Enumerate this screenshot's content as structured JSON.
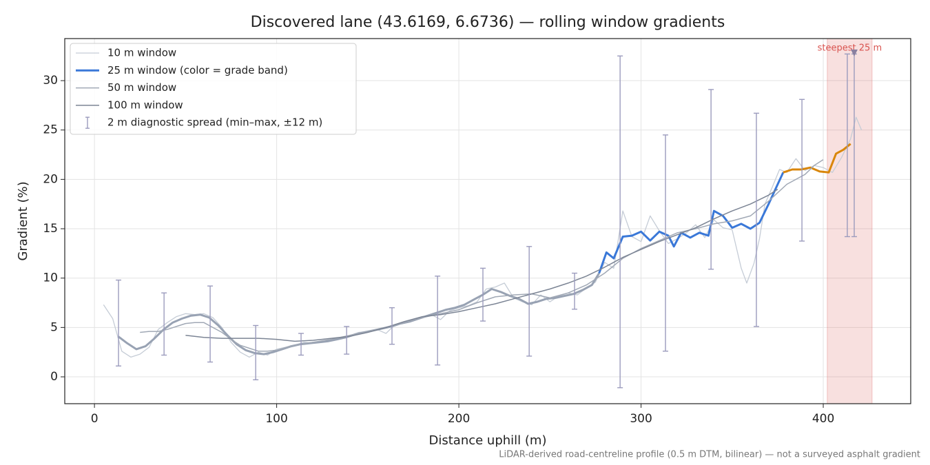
{
  "chart_data": {
    "type": "line",
    "title": "Discovered lane (43.6169, 6.6736) — rolling window gradients",
    "x_label": "Distance uphill (m)",
    "y_label": "Gradient (%)",
    "footnote": "LiDAR-derived road-centreline profile (0.5 m DTM, bilinear) — not a surveyed asphalt gradient",
    "xlim": [
      -16.3,
      448
    ],
    "ylim": [
      -2.72,
      34.26
    ],
    "xticks": [
      0,
      100,
      200,
      300,
      400
    ],
    "yticks": [
      0,
      5,
      10,
      15,
      20,
      25,
      30
    ],
    "grid": true,
    "legend": "upper left",
    "series": [
      {
        "name": "10 m window",
        "color": "#c5ccd6",
        "width": 1.3,
        "x": [
          5,
          10,
          15,
          20,
          25,
          30,
          35,
          40,
          45,
          50,
          55,
          60,
          65,
          70,
          75,
          80,
          85,
          90,
          95,
          100,
          105,
          110,
          115,
          120,
          125,
          130,
          135,
          140,
          145,
          150,
          155,
          160,
          165,
          170,
          175,
          180,
          185,
          190,
          195,
          200,
          205,
          210,
          215,
          220,
          225,
          230,
          235,
          240,
          245,
          250,
          255,
          260,
          265,
          270,
          275,
          280,
          285,
          290,
          295,
          300,
          305,
          310,
          315,
          320,
          325,
          330,
          335,
          340,
          345,
          350,
          355,
          358,
          362,
          365,
          368,
          372,
          376,
          380,
          385,
          390,
          395,
          400,
          405,
          410,
          415,
          418,
          421
        ],
        "values": [
          7.3,
          5.9,
          2.6,
          2.0,
          2.3,
          3.0,
          4.8,
          5.5,
          6.1,
          6.4,
          6.3,
          6.4,
          6.0,
          5.0,
          3.5,
          2.5,
          2.0,
          2.5,
          2.2,
          2.8,
          3.0,
          3.2,
          3.5,
          3.4,
          3.6,
          3.8,
          3.9,
          4.1,
          4.5,
          4.6,
          4.8,
          4.4,
          5.3,
          5.5,
          5.7,
          6.0,
          6.3,
          5.8,
          6.7,
          7.0,
          7.2,
          7.6,
          8.9,
          9.1,
          9.5,
          8.0,
          7.6,
          7.3,
          8.3,
          7.6,
          8.2,
          8.5,
          8.3,
          9.0,
          9.6,
          11.6,
          11.0,
          16.8,
          14.2,
          13.7,
          16.3,
          14.8,
          13.5,
          14.0,
          14.6,
          15.4,
          14.1,
          15.9,
          15.1,
          14.9,
          11.0,
          9.5,
          11.5,
          14.0,
          17.5,
          19.2,
          21.0,
          20.7,
          22.1,
          20.9,
          21.4,
          21.2,
          20.7,
          22.2,
          24.1,
          26.3,
          25.0
        ]
      },
      {
        "name": "25 m window (color = grade band)",
        "color": "#3a78d8",
        "width": 3,
        "grade_bands": [
          {
            "below": 10,
            "color": "#98a2b3"
          },
          {
            "below": 20,
            "color": "#3a78d8"
          },
          {
            "color": "#d9860a"
          }
        ],
        "x": [
          13,
          18,
          23,
          28,
          33,
          38,
          43,
          48,
          53,
          58,
          63,
          68,
          73,
          78,
          83,
          88,
          93,
          98,
          103,
          108,
          113,
          118,
          123,
          128,
          133,
          138,
          143,
          148,
          153,
          158,
          163,
          168,
          173,
          178,
          183,
          188,
          193,
          198,
          203,
          208,
          213,
          218,
          223,
          228,
          233,
          238,
          243,
          248,
          253,
          258,
          263,
          268,
          273,
          277,
          281,
          285,
          290,
          295,
          300,
          305,
          310,
          315,
          318,
          322,
          327,
          332,
          337,
          340,
          345,
          350,
          355,
          360,
          365,
          370,
          375,
          378,
          383,
          388,
          393,
          398,
          403,
          407,
          411,
          415
        ],
        "values": [
          4.1,
          3.4,
          2.8,
          3.1,
          3.9,
          4.8,
          5.5,
          5.9,
          6.2,
          6.3,
          6.0,
          5.2,
          4.2,
          3.3,
          2.7,
          2.4,
          2.3,
          2.5,
          2.8,
          3.1,
          3.3,
          3.4,
          3.5,
          3.6,
          3.8,
          4.0,
          4.3,
          4.5,
          4.7,
          4.9,
          5.1,
          5.4,
          5.6,
          5.9,
          6.2,
          6.5,
          6.8,
          7.0,
          7.3,
          7.8,
          8.3,
          8.9,
          8.6,
          8.2,
          7.9,
          7.4,
          7.6,
          7.9,
          8.0,
          8.2,
          8.4,
          8.8,
          9.3,
          10.5,
          12.6,
          12.0,
          14.2,
          14.3,
          14.7,
          13.8,
          14.7,
          14.3,
          13.2,
          14.6,
          14.1,
          14.6,
          14.3,
          16.8,
          16.3,
          15.1,
          15.5,
          15.0,
          15.6,
          17.5,
          19.5,
          20.7,
          21.0,
          21.0,
          21.2,
          20.8,
          20.7,
          22.6,
          23.0,
          23.6
        ]
      },
      {
        "name": "50 m window",
        "color": "#a0a8b5",
        "width": 1.5,
        "x": [
          25,
          30,
          35,
          40,
          45,
          50,
          55,
          60,
          65,
          70,
          75,
          80,
          85,
          90,
          95,
          100,
          110,
          120,
          130,
          140,
          150,
          160,
          170,
          180,
          190,
          200,
          210,
          220,
          230,
          240,
          250,
          260,
          270,
          280,
          290,
          300,
          310,
          320,
          330,
          340,
          350,
          360,
          370,
          380,
          390,
          395,
          400
        ],
        "values": [
          4.5,
          4.6,
          4.6,
          4.8,
          5.1,
          5.4,
          5.5,
          5.5,
          5.0,
          4.5,
          3.8,
          3.2,
          2.9,
          2.6,
          2.6,
          2.7,
          3.2,
          3.5,
          3.8,
          4.2,
          4.6,
          5.0,
          5.5,
          6.0,
          6.4,
          6.8,
          7.5,
          8.1,
          8.3,
          8.4,
          8.0,
          8.5,
          9.3,
          10.5,
          12.0,
          13.0,
          13.8,
          14.6,
          15.0,
          15.5,
          15.8,
          16.3,
          17.8,
          19.5,
          20.5,
          21.4,
          22.0
        ]
      },
      {
        "name": "100 m window",
        "color": "#7b8494",
        "width": 1.5,
        "x": [
          50,
          60,
          70,
          80,
          90,
          100,
          110,
          120,
          130,
          140,
          150,
          160,
          170,
          180,
          190,
          200,
          210,
          220,
          230,
          240,
          250,
          260,
          270,
          280,
          290,
          300,
          310,
          320,
          330,
          340,
          350,
          360,
          370,
          375
        ],
        "values": [
          4.2,
          4.0,
          3.9,
          3.9,
          3.9,
          3.8,
          3.6,
          3.7,
          3.9,
          4.1,
          4.5,
          5.0,
          5.6,
          6.1,
          6.3,
          6.6,
          7.0,
          7.4,
          7.9,
          8.4,
          8.9,
          9.5,
          10.2,
          11.1,
          12.1,
          12.9,
          13.7,
          14.4,
          15.1,
          16.0,
          16.8,
          17.5,
          18.4,
          19.0
        ]
      }
    ],
    "errorbars": {
      "name": "2 m diagnostic spread (min–max, ±12 m)",
      "color": "#9b9bbd",
      "x": [
        13.2,
        38.2,
        63.5,
        88.5,
        113.4,
        138.4,
        163.3,
        188.3,
        213.2,
        238.6,
        263.5,
        288.5,
        313.4,
        338.4,
        363.3,
        388.3,
        413.2,
        417
      ],
      "low": [
        1.1,
        2.2,
        1.5,
        -0.3,
        2.2,
        2.3,
        3.3,
        1.2,
        5.65,
        2.1,
        6.85,
        -1.1,
        2.6,
        10.9,
        5.1,
        13.75,
        14.2,
        14.2
      ],
      "high": [
        9.8,
        8.5,
        9.2,
        5.2,
        4.4,
        5.1,
        7.0,
        10.2,
        11.0,
        13.2,
        10.5,
        32.5,
        24.5,
        29.1,
        26.7,
        28.1,
        32.7,
        32.7
      ]
    },
    "steepest": {
      "label": "steepest 25 m",
      "x0": 402.2,
      "x1": 426.8,
      "color": "#d9534f",
      "marker_x": 417,
      "marker_y": 32.8
    }
  }
}
